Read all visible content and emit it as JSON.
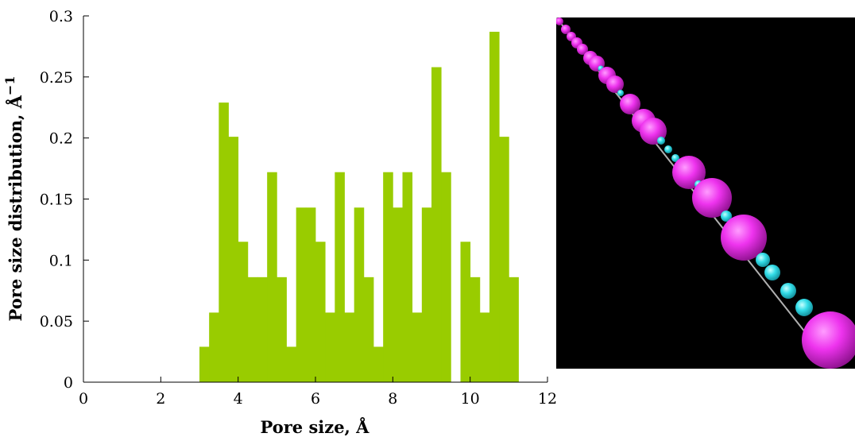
{
  "chart_data": {
    "type": "bar",
    "title": "",
    "xlabel": "Pore size, Å",
    "ylabel": "Pore size distribution, Å",
    "ylabel_superscript": "−1",
    "xlim": [
      0,
      12
    ],
    "ylim": [
      0,
      0.3
    ],
    "x_ticks": [
      "0",
      "2",
      "4",
      "6",
      "8",
      "10",
      "12"
    ],
    "y_ticks": [
      "0",
      "0.05",
      "0.1",
      "0.15",
      "0.2",
      "0.25",
      "0.3"
    ],
    "bin_width": 0.25,
    "bar_color": "#99cc00",
    "grid": false,
    "bins": [
      {
        "x": 3.0,
        "y": 0.029
      },
      {
        "x": 3.25,
        "y": 0.057
      },
      {
        "x": 3.5,
        "y": 0.229
      },
      {
        "x": 3.75,
        "y": 0.201
      },
      {
        "x": 4.0,
        "y": 0.115
      },
      {
        "x": 4.25,
        "y": 0.086
      },
      {
        "x": 4.5,
        "y": 0.086
      },
      {
        "x": 4.75,
        "y": 0.172
      },
      {
        "x": 5.0,
        "y": 0.086
      },
      {
        "x": 5.25,
        "y": 0.029
      },
      {
        "x": 5.5,
        "y": 0.143
      },
      {
        "x": 5.75,
        "y": 0.143
      },
      {
        "x": 6.0,
        "y": 0.115
      },
      {
        "x": 6.25,
        "y": 0.057
      },
      {
        "x": 6.5,
        "y": 0.172
      },
      {
        "x": 6.75,
        "y": 0.057
      },
      {
        "x": 7.0,
        "y": 0.143
      },
      {
        "x": 7.25,
        "y": 0.086
      },
      {
        "x": 7.5,
        "y": 0.029
      },
      {
        "x": 7.75,
        "y": 0.172
      },
      {
        "x": 8.0,
        "y": 0.143
      },
      {
        "x": 8.25,
        "y": 0.172
      },
      {
        "x": 8.5,
        "y": 0.057
      },
      {
        "x": 8.75,
        "y": 0.143
      },
      {
        "x": 9.0,
        "y": 0.258
      },
      {
        "x": 9.25,
        "y": 0.172
      },
      {
        "x": 9.75,
        "y": 0.115
      },
      {
        "x": 10.0,
        "y": 0.086
      },
      {
        "x": 10.25,
        "y": 0.057
      },
      {
        "x": 10.5,
        "y": 0.287
      },
      {
        "x": 10.75,
        "y": 0.201
      },
      {
        "x": 11.0,
        "y": 0.086
      }
    ]
  },
  "render_image": {
    "background": "#000000",
    "large_sphere_color": "#ee33ee",
    "small_sphere_color": "#33dde8",
    "bond_color": "#b0b0b0"
  }
}
